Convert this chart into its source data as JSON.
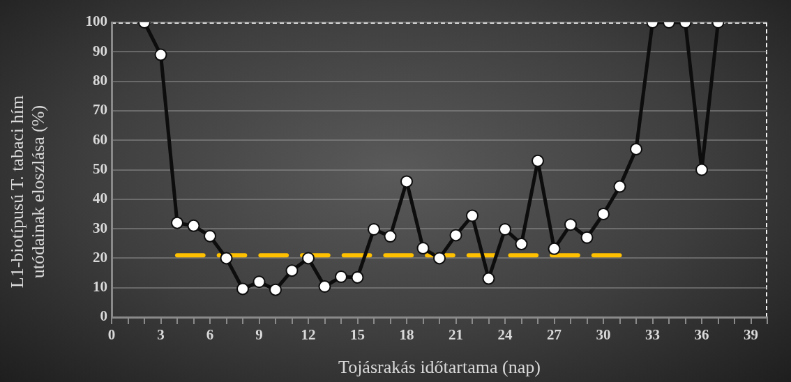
{
  "chart_data": {
    "type": "line",
    "xlabel": "Tojásrakás időtartama (nap)",
    "ylabel": "L1-biotípusú T. tabaci hím utódainak eloszlása (%)",
    "xlim": [
      0,
      40
    ],
    "ylim": [
      0,
      100
    ],
    "xticks": [
      0,
      {
        "value": 1,
        "label": null
      },
      {
        "value": 2,
        "label": null
      },
      3,
      {
        "value": 4,
        "label": null
      },
      {
        "value": 5,
        "label": null
      },
      6,
      {
        "value": 7,
        "label": null
      },
      {
        "value": 8,
        "label": null
      },
      9,
      {
        "value": 10,
        "label": null
      },
      {
        "value": 11,
        "label": null
      },
      12,
      {
        "value": 13,
        "label": null
      },
      {
        "value": 14,
        "label": null
      },
      15,
      {
        "value": 16,
        "label": null
      },
      {
        "value": 17,
        "label": null
      },
      18,
      {
        "value": 19,
        "label": null
      },
      {
        "value": 20,
        "label": null
      },
      21,
      {
        "value": 22,
        "label": null
      },
      {
        "value": 23,
        "label": null
      },
      24,
      {
        "value": 25,
        "label": null
      },
      {
        "value": 26,
        "label": null
      },
      27,
      {
        "value": 28,
        "label": null
      },
      {
        "value": 29,
        "label": null
      },
      30,
      {
        "value": 31,
        "label": null
      },
      {
        "value": 32,
        "label": null
      },
      33,
      {
        "value": 34,
        "label": null
      },
      {
        "value": 35,
        "label": null
      },
      36,
      {
        "value": 37,
        "label": null
      },
      {
        "value": 38,
        "label": null
      },
      39,
      {
        "value": 40,
        "label": null
      }
    ],
    "yticks": [
      0,
      10,
      20,
      30,
      40,
      50,
      60,
      70,
      80,
      90,
      100
    ],
    "grid": "y",
    "legend": false,
    "series": [
      {
        "color": "#0d0d0d",
        "marker": "circle",
        "x": [
          2,
          3,
          4,
          5,
          6,
          7,
          8,
          9,
          10,
          11,
          12,
          13,
          14,
          15,
          16,
          17,
          18,
          19,
          20,
          21,
          22,
          23,
          24,
          25,
          26,
          27,
          28,
          29,
          30,
          31,
          32,
          33,
          34,
          35,
          36,
          37
        ],
        "values": [
          100,
          89,
          32,
          31,
          27.5,
          20,
          9.6,
          12,
          9.3,
          15.8,
          20,
          10.4,
          13.7,
          13.5,
          29.8,
          27.4,
          46,
          23.4,
          20,
          27.8,
          34.4,
          13.1,
          29.8,
          24.8,
          53,
          23.2,
          31.4,
          27,
          35,
          44.3,
          57,
          100,
          100,
          100,
          50,
          100
        ]
      },
      {
        "color": "#ffc000",
        "marker": "none",
        "line_style": "dashed",
        "x": [
          4,
          31
        ],
        "values": [
          21,
          21
        ]
      }
    ]
  }
}
